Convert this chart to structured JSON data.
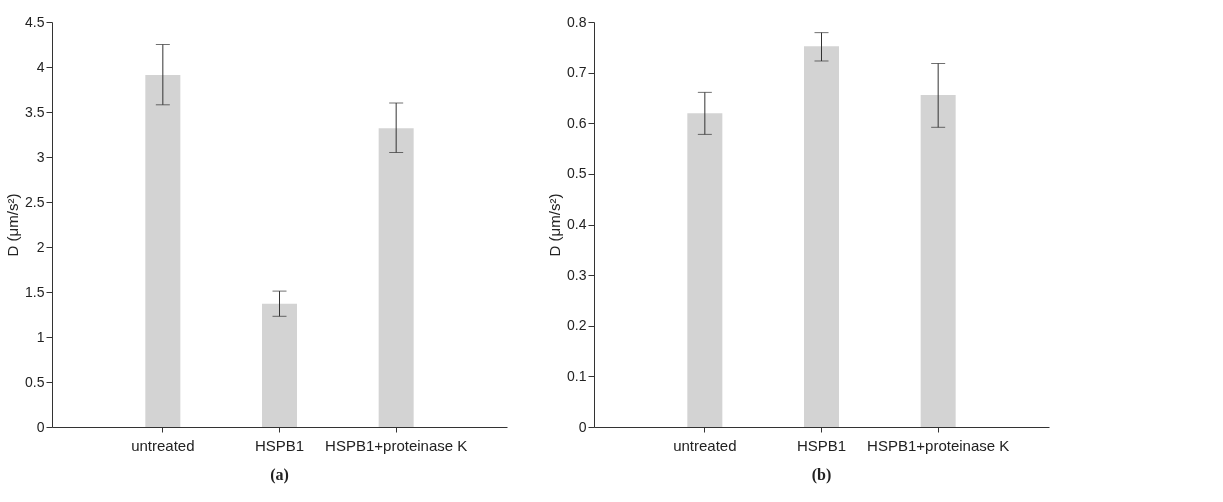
{
  "chart_data": [
    {
      "type": "bar",
      "title": "(a)",
      "ylabel": "D (μm/s²)",
      "categories": [
        "untreated",
        "HSPB1",
        "HSPB1+proteinase K"
      ],
      "values": [
        3.91,
        1.37,
        3.32
      ],
      "errors": [
        [
          3.58,
          4.25
        ],
        [
          1.23,
          1.51
        ],
        [
          3.05,
          3.6
        ]
      ],
      "color": "#d3d3d3",
      "ylim": [
        0,
        4.5
      ],
      "yticks": [
        0,
        0.5,
        1,
        1.5,
        2,
        2.5,
        3,
        3.5,
        4,
        4.5
      ],
      "grid": false
    },
    {
      "type": "bar",
      "title": "(b)",
      "ylabel": "D (μm/s²)",
      "categories": [
        "untreated",
        "HSPB1",
        "HSPB1+proteinase K"
      ],
      "values": [
        0.62,
        0.752,
        0.656
      ],
      "errors": [
        [
          0.578,
          0.661
        ],
        [
          0.723,
          0.779
        ],
        [
          0.592,
          0.718
        ]
      ],
      "color": "#d3d3d3",
      "ylim": [
        0,
        0.8
      ],
      "yticks": [
        0,
        0.1,
        0.2,
        0.3,
        0.4,
        0.5,
        0.6,
        0.7,
        0.8
      ],
      "grid": false
    }
  ]
}
